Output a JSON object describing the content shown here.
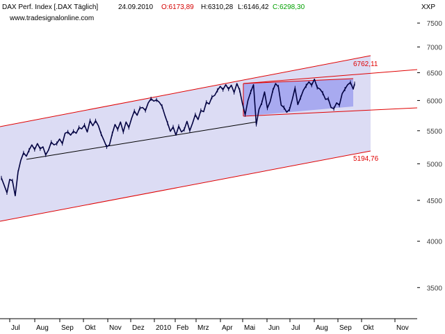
{
  "header": {
    "instrument": "DAX Perf. Index [.DAX  Täglich]",
    "date": "24.09.2010",
    "open": "O:6173,89",
    "high": "H:6310,28",
    "low": "L:6146,42",
    "close": "C:6298,30",
    "website": "www.tradesignalonline.com"
  },
  "colors": {
    "price": "#000040",
    "open": "#d40000",
    "close": "#00a000",
    "channel_line": "#e00000",
    "channel_fill": "#dcdcf4",
    "inner_fill": "#a8aaf0",
    "label_red": "#e00000",
    "text": "#000000",
    "axis_text": "#404040"
  },
  "axis": {
    "unit_label": "XXP"
  },
  "chart_data": {
    "type": "line",
    "series": [
      {
        "values": [
          [
            0,
            4800
          ],
          [
            4,
            4700
          ],
          [
            8,
            4600
          ],
          [
            12,
            4780
          ],
          [
            16,
            4760
          ],
          [
            20,
            4560
          ],
          [
            24,
            4880
          ],
          [
            28,
            5050
          ],
          [
            32,
            5160
          ],
          [
            36,
            5110
          ],
          [
            40,
            5200
          ],
          [
            44,
            5280
          ],
          [
            48,
            5210
          ],
          [
            52,
            5300
          ],
          [
            56,
            5220
          ],
          [
            60,
            5250
          ],
          [
            64,
            5130
          ],
          [
            68,
            5200
          ],
          [
            72,
            5320
          ],
          [
            76,
            5280
          ],
          [
            80,
            5300
          ],
          [
            84,
            5370
          ],
          [
            88,
            5300
          ],
          [
            92,
            5460
          ],
          [
            96,
            5480
          ],
          [
            100,
            5430
          ],
          [
            104,
            5490
          ],
          [
            108,
            5460
          ],
          [
            112,
            5550
          ],
          [
            116,
            5530
          ],
          [
            120,
            5590
          ],
          [
            124,
            5480
          ],
          [
            128,
            5660
          ],
          [
            132,
            5580
          ],
          [
            136,
            5660
          ],
          [
            140,
            5580
          ],
          [
            144,
            5450
          ],
          [
            148,
            5350
          ],
          [
            152,
            5250
          ],
          [
            156,
            5280
          ],
          [
            160,
            5450
          ],
          [
            164,
            5600
          ],
          [
            168,
            5520
          ],
          [
            172,
            5640
          ],
          [
            176,
            5480
          ],
          [
            180,
            5640
          ],
          [
            184,
            5550
          ],
          [
            188,
            5700
          ],
          [
            192,
            5820
          ],
          [
            196,
            5750
          ],
          [
            200,
            5870
          ],
          [
            204,
            5880
          ],
          [
            208,
            5830
          ],
          [
            212,
            5960
          ],
          [
            216,
            6030
          ],
          [
            220,
            5990
          ],
          [
            224,
            6010
          ],
          [
            228,
            5970
          ],
          [
            232,
            5900
          ],
          [
            236,
            5750
          ],
          [
            240,
            5620
          ],
          [
            244,
            5490
          ],
          [
            248,
            5560
          ],
          [
            252,
            5430
          ],
          [
            256,
            5570
          ],
          [
            260,
            5480
          ],
          [
            264,
            5520
          ],
          [
            268,
            5650
          ],
          [
            272,
            5500
          ],
          [
            276,
            5620
          ],
          [
            280,
            5760
          ],
          [
            284,
            5680
          ],
          [
            288,
            5830
          ],
          [
            292,
            5810
          ],
          [
            296,
            5970
          ],
          [
            300,
            5940
          ],
          [
            304,
            6060
          ],
          [
            308,
            6090
          ],
          [
            312,
            6180
          ],
          [
            316,
            6250
          ],
          [
            320,
            6190
          ],
          [
            324,
            6280
          ],
          [
            328,
            6200
          ],
          [
            332,
            6270
          ],
          [
            336,
            6140
          ],
          [
            340,
            6300
          ],
          [
            344,
            6180
          ],
          [
            348,
            5950
          ],
          [
            352,
            5760
          ],
          [
            356,
            6000
          ],
          [
            360,
            6150
          ],
          [
            364,
            6280
          ],
          [
            368,
            5600
          ],
          [
            372,
            5850
          ],
          [
            376,
            5960
          ],
          [
            380,
            6150
          ],
          [
            384,
            5870
          ],
          [
            388,
            5980
          ],
          [
            392,
            6180
          ],
          [
            396,
            6300
          ],
          [
            400,
            6240
          ],
          [
            404,
            5920
          ],
          [
            408,
            5880
          ],
          [
            412,
            5800
          ],
          [
            416,
            5850
          ],
          [
            420,
            6020
          ],
          [
            424,
            6220
          ],
          [
            428,
            5930
          ],
          [
            432,
            6050
          ],
          [
            436,
            6180
          ],
          [
            440,
            6260
          ],
          [
            444,
            6330
          ],
          [
            448,
            6270
          ],
          [
            452,
            6380
          ],
          [
            456,
            6230
          ],
          [
            460,
            6200
          ],
          [
            464,
            6130
          ],
          [
            468,
            6020
          ],
          [
            472,
            6030
          ],
          [
            476,
            5880
          ],
          [
            480,
            5860
          ],
          [
            484,
            5960
          ],
          [
            488,
            5920
          ],
          [
            492,
            6120
          ],
          [
            496,
            6200
          ],
          [
            500,
            6280
          ],
          [
            504,
            6320
          ],
          [
            508,
            6200
          ],
          [
            510,
            6298
          ]
        ]
      }
    ],
    "y_scale": "log",
    "ylim": [
      3200,
      7700
    ],
    "y_ticks": [
      {
        "value": 7500,
        "label": "7500"
      },
      {
        "value": 7000,
        "label": "7000"
      },
      {
        "value": 6500,
        "label": "6500"
      },
      {
        "value": 6000,
        "label": "6000"
      },
      {
        "value": 5500,
        "label": "5500"
      },
      {
        "value": 5000,
        "label": "5000"
      },
      {
        "value": 4500,
        "label": "4500"
      },
      {
        "value": 4000,
        "label": "4000"
      },
      {
        "value": 3500,
        "label": "3500"
      }
    ],
    "x_ticks": [
      "Jul",
      "Aug",
      "Sep",
      "Okt",
      "Nov",
      "Dez",
      "2010",
      "Feb",
      "Mrz",
      "Apr",
      "Mai",
      "Jun",
      "Jul",
      "Aug",
      "Sep",
      "Okt",
      "Nov"
    ],
    "annotations": [
      "6762,11",
      "5194,76"
    ],
    "grid": false
  }
}
